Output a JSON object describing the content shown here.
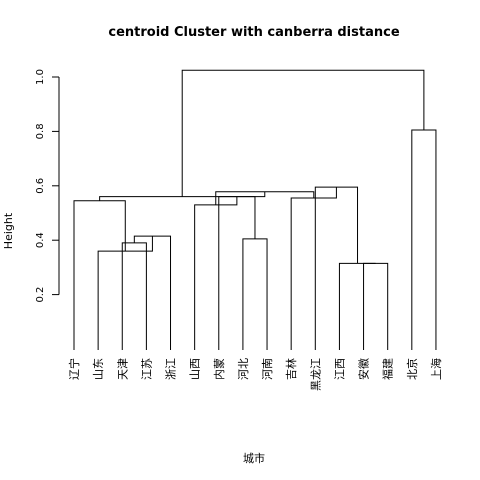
{
  "chart_data": {
    "type": "dendrogram",
    "title": "centroid Cluster with canberra distance",
    "xlabel": "城市",
    "ylabel": "Height",
    "y_ticks": [
      0.2,
      0.4,
      0.6,
      0.8,
      1.0
    ],
    "y_tick_labels": [
      "0.2",
      "0.4",
      "0.6",
      "0.8",
      "1.0"
    ],
    "y_axis_range": [
      0.2,
      1.0
    ],
    "leaves": [
      "辽宁",
      "山东",
      "天津",
      "江苏",
      "浙江",
      "山西",
      "内蒙",
      "河北",
      "河南",
      "吉林",
      "黑龙江",
      "江西",
      "安徽",
      "福建",
      "北京",
      "上海"
    ],
    "merges": [
      {
        "id": "c1",
        "left": "安徽",
        "right": "福建",
        "height": 0.315
      },
      {
        "id": "c2",
        "left": "江西",
        "right": "c1",
        "height": 0.315
      },
      {
        "id": "c3",
        "left": "天津",
        "right": "江苏",
        "height": 0.39
      },
      {
        "id": "c4",
        "left": "c3",
        "right": "浙江",
        "height": 0.415
      },
      {
        "id": "c5",
        "left": "山东",
        "right": "c4",
        "height": 0.36
      },
      {
        "id": "c6",
        "left": "河北",
        "right": "河南",
        "height": 0.405
      },
      {
        "id": "c7",
        "left": "辽宁",
        "right": "c5",
        "height": 0.545
      },
      {
        "id": "c8",
        "left": "内蒙",
        "right": "c6",
        "height": 0.56
      },
      {
        "id": "c9",
        "left": "山西",
        "right": "c8",
        "height": 0.53
      },
      {
        "id": "c10",
        "left": "黑龙江",
        "right": "c2",
        "height": 0.595
      },
      {
        "id": "c11",
        "left": "吉林",
        "right": "c10",
        "height": 0.555
      },
      {
        "id": "c12",
        "left": "c9",
        "right": "c11",
        "height": 0.578
      },
      {
        "id": "c13",
        "left": "c7",
        "right": "c12",
        "height": 0.56
      },
      {
        "id": "c14",
        "left": "北京",
        "right": "上海",
        "height": 0.805
      },
      {
        "id": "c15",
        "left": "c13",
        "right": "c14",
        "height": 1.025
      }
    ]
  }
}
